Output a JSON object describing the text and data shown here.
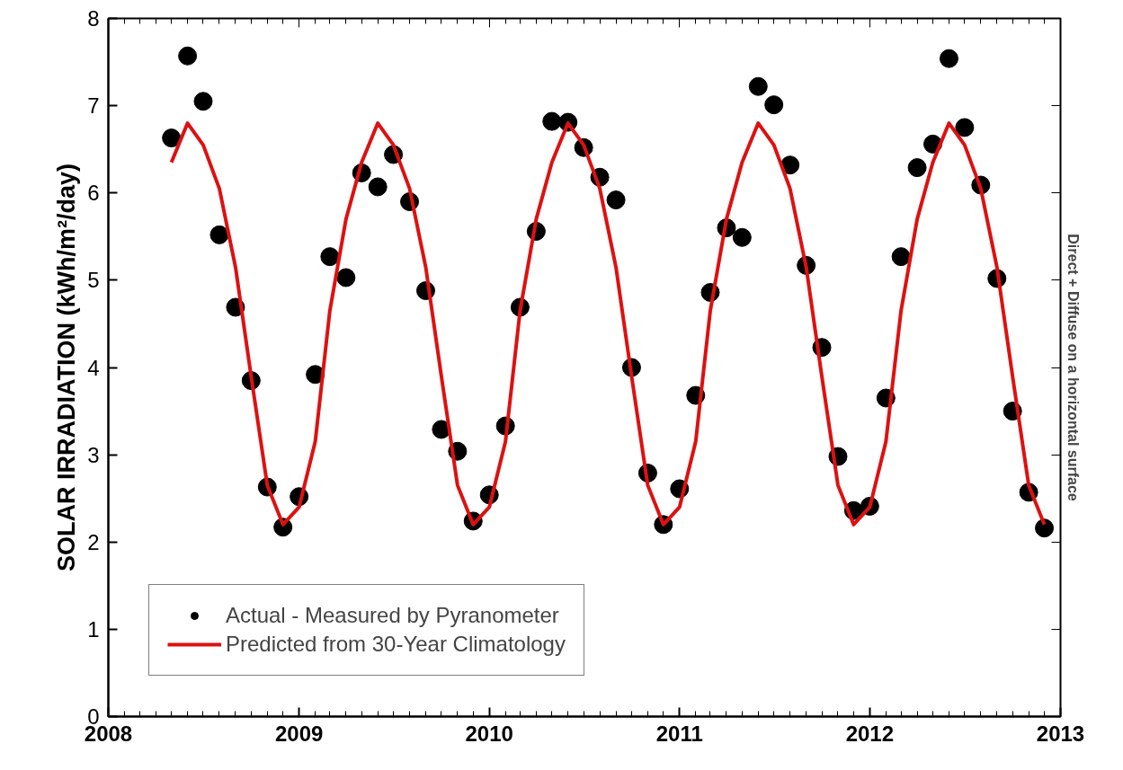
{
  "chart_data": {
    "type": "scatter",
    "ylabel": "SOLAR IRRADIATION (kWh/m²/day)",
    "y2label": "Direct + Diffuse on a horizontal surface",
    "x": [
      "2008-05",
      "2008-06",
      "2008-07",
      "2008-08",
      "2008-09",
      "2008-10",
      "2008-11",
      "2008-12",
      "2009-01",
      "2009-02",
      "2009-03",
      "2009-04",
      "2009-05",
      "2009-06",
      "2009-07",
      "2009-08",
      "2009-09",
      "2009-10",
      "2009-11",
      "2009-12",
      "2010-01",
      "2010-02",
      "2010-03",
      "2010-04",
      "2010-05",
      "2010-06",
      "2010-07",
      "2010-08",
      "2010-09",
      "2010-10",
      "2010-11",
      "2010-12",
      "2011-01",
      "2011-02",
      "2011-03",
      "2011-04",
      "2011-05",
      "2011-06",
      "2011-07",
      "2011-08",
      "2011-09",
      "2011-10",
      "2011-11",
      "2011-12",
      "2012-01",
      "2012-02",
      "2012-03",
      "2012-04",
      "2012-05",
      "2012-06",
      "2012-07",
      "2012-08",
      "2012-09",
      "2012-10",
      "2012-11",
      "2012-12"
    ],
    "series": [
      {
        "name": "Actual - Measured by Pyranometer",
        "color": "#000000",
        "marker": "circle",
        "values": [
          6.63,
          7.57,
          7.05,
          5.52,
          4.69,
          3.85,
          2.63,
          2.17,
          2.52,
          3.92,
          5.27,
          5.03,
          6.23,
          6.07,
          6.44,
          5.9,
          4.88,
          3.29,
          3.04,
          2.24,
          2.54,
          3.33,
          4.69,
          5.56,
          6.82,
          6.81,
          6.52,
          6.18,
          5.92,
          4.0,
          2.79,
          2.2,
          2.61,
          3.68,
          4.86,
          5.6,
          5.49,
          7.22,
          7.01,
          6.32,
          5.17,
          4.23,
          2.98,
          2.36,
          2.41,
          3.65,
          5.27,
          6.29,
          6.56,
          7.54,
          6.75,
          6.09,
          5.02,
          3.5,
          2.57,
          2.16
        ]
      },
      {
        "name": "Predicted from 30-Year Climatology",
        "type": "line",
        "color": "#dd1111",
        "marker": "none",
        "line_style": "solid",
        "values": [
          6.35,
          6.8,
          6.55,
          6.05,
          5.15,
          3.9,
          2.65,
          2.2,
          2.4,
          3.15,
          4.65,
          5.7,
          6.35,
          6.8,
          6.55,
          6.05,
          5.15,
          3.9,
          2.65,
          2.2,
          2.4,
          3.15,
          4.65,
          5.7,
          6.35,
          6.8,
          6.55,
          6.05,
          5.15,
          3.9,
          2.65,
          2.2,
          2.4,
          3.15,
          4.65,
          5.7,
          6.35,
          6.8,
          6.55,
          6.05,
          5.15,
          3.9,
          2.65,
          2.2,
          2.4,
          3.15,
          4.65,
          5.7,
          6.35,
          6.8,
          6.55,
          6.05,
          5.15,
          3.9,
          2.65,
          2.2
        ]
      }
    ],
    "xlim": [
      "2008",
      "2013"
    ],
    "xticks": [
      "2008",
      "2009",
      "2010",
      "2011",
      "2012",
      "2013"
    ],
    "ylim": [
      0,
      8
    ],
    "yticks": [
      0,
      1,
      2,
      3,
      4,
      5,
      6,
      7,
      8
    ],
    "grid": false,
    "legend": "bottom left"
  }
}
